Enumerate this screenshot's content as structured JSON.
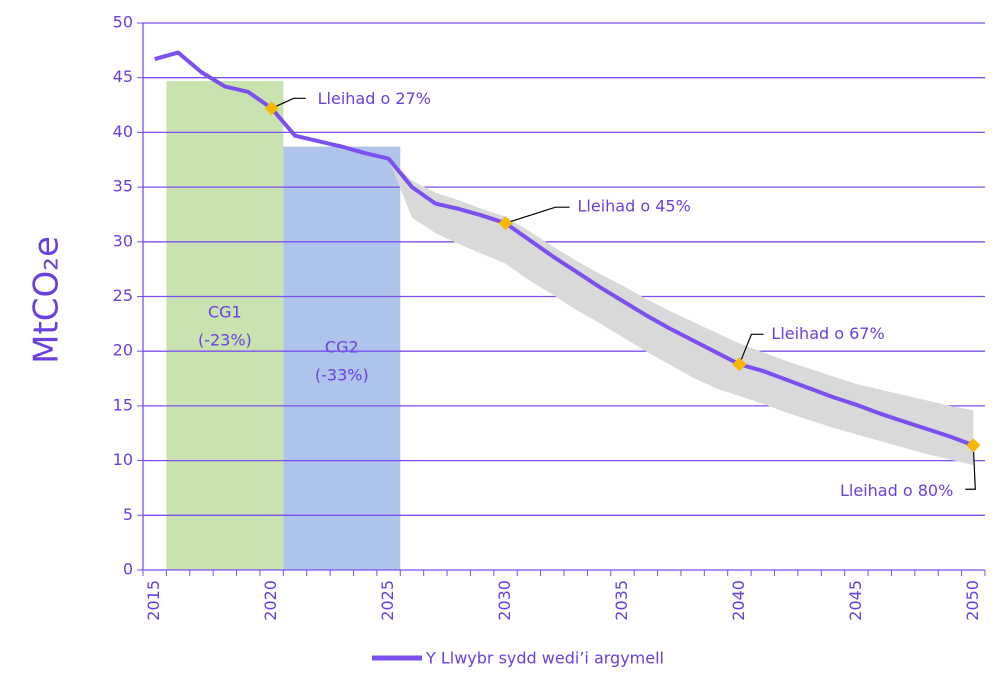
{
  "chart_data": {
    "type": "line",
    "y_label": "MtCO₂e",
    "categories": [
      "2015",
      null,
      null,
      null,
      null,
      "2020",
      null,
      null,
      null,
      null,
      "2025",
      null,
      null,
      null,
      null,
      "2030",
      null,
      null,
      null,
      null,
      "2035",
      null,
      null,
      null,
      null,
      "2040",
      null,
      null,
      null,
      null,
      "2045",
      null,
      null,
      null,
      null,
      "2050"
    ],
    "series": [
      {
        "name": "Y Llwybr sydd wedi’i argymell",
        "color": "#7b4ff0",
        "values": [
          46.7,
          47.3,
          45.5,
          44.2,
          43.7,
          42.2,
          39.7,
          39.2,
          38.7,
          38.1,
          37.6,
          35.0,
          33.5,
          33.0,
          32.4,
          31.7,
          30.2,
          28.7,
          27.3,
          25.9,
          24.6,
          23.3,
          22.1,
          21.0,
          19.9,
          18.8,
          18.2,
          17.4,
          16.6,
          15.8,
          15.1,
          14.3,
          13.6,
          12.9,
          12.2,
          11.4
        ]
      }
    ],
    "range": {
      "color": "#d9d9d9",
      "upper": [
        null,
        null,
        null,
        null,
        null,
        null,
        39.7,
        39.2,
        38.7,
        38.1,
        37.6,
        35.6,
        34.5,
        33.8,
        33.0,
        32.3,
        31.0,
        29.6,
        28.3,
        27.1,
        26.0,
        24.8,
        23.7,
        22.7,
        21.7,
        20.7,
        19.9,
        19.1,
        18.4,
        17.7,
        17.0,
        16.5,
        16.0,
        15.5,
        15.0,
        14.6
      ],
      "lower": [
        null,
        null,
        null,
        null,
        null,
        null,
        39.7,
        39.2,
        38.7,
        38.1,
        37.6,
        32.2,
        30.8,
        29.8,
        28.9,
        28.0,
        26.5,
        25.2,
        23.8,
        22.6,
        21.3,
        20.0,
        18.8,
        17.6,
        16.6,
        15.9,
        15.2,
        14.4,
        13.7,
        13.0,
        12.4,
        11.8,
        11.2,
        10.6,
        10.1,
        9.6
      ]
    },
    "budgets": [
      {
        "label": "CG1",
        "sublabel": "(-23%)",
        "years": [
          2016,
          2020
        ],
        "value": 44.7,
        "color": "#c9e3b0"
      },
      {
        "label": "CG2",
        "sublabel": "(-33%)",
        "years": [
          2021,
          2025
        ],
        "value": 38.7,
        "color": "#aec4ea"
      }
    ],
    "annotations": [
      {
        "text": "Lleihad o 27%",
        "x": "2020"
      },
      {
        "text": "Lleihad o 45%",
        "x": "2030"
      },
      {
        "text": "Lleihad o 67%",
        "x": "2040"
      },
      {
        "text": "Lleihad o 80%",
        "x": "2050"
      }
    ],
    "marker_color": "#f5b800",
    "ylim": [
      0,
      50
    ],
    "yticks": [
      0,
      5,
      10,
      15,
      20,
      25,
      30,
      35,
      40,
      45,
      50
    ],
    "grid": true
  }
}
